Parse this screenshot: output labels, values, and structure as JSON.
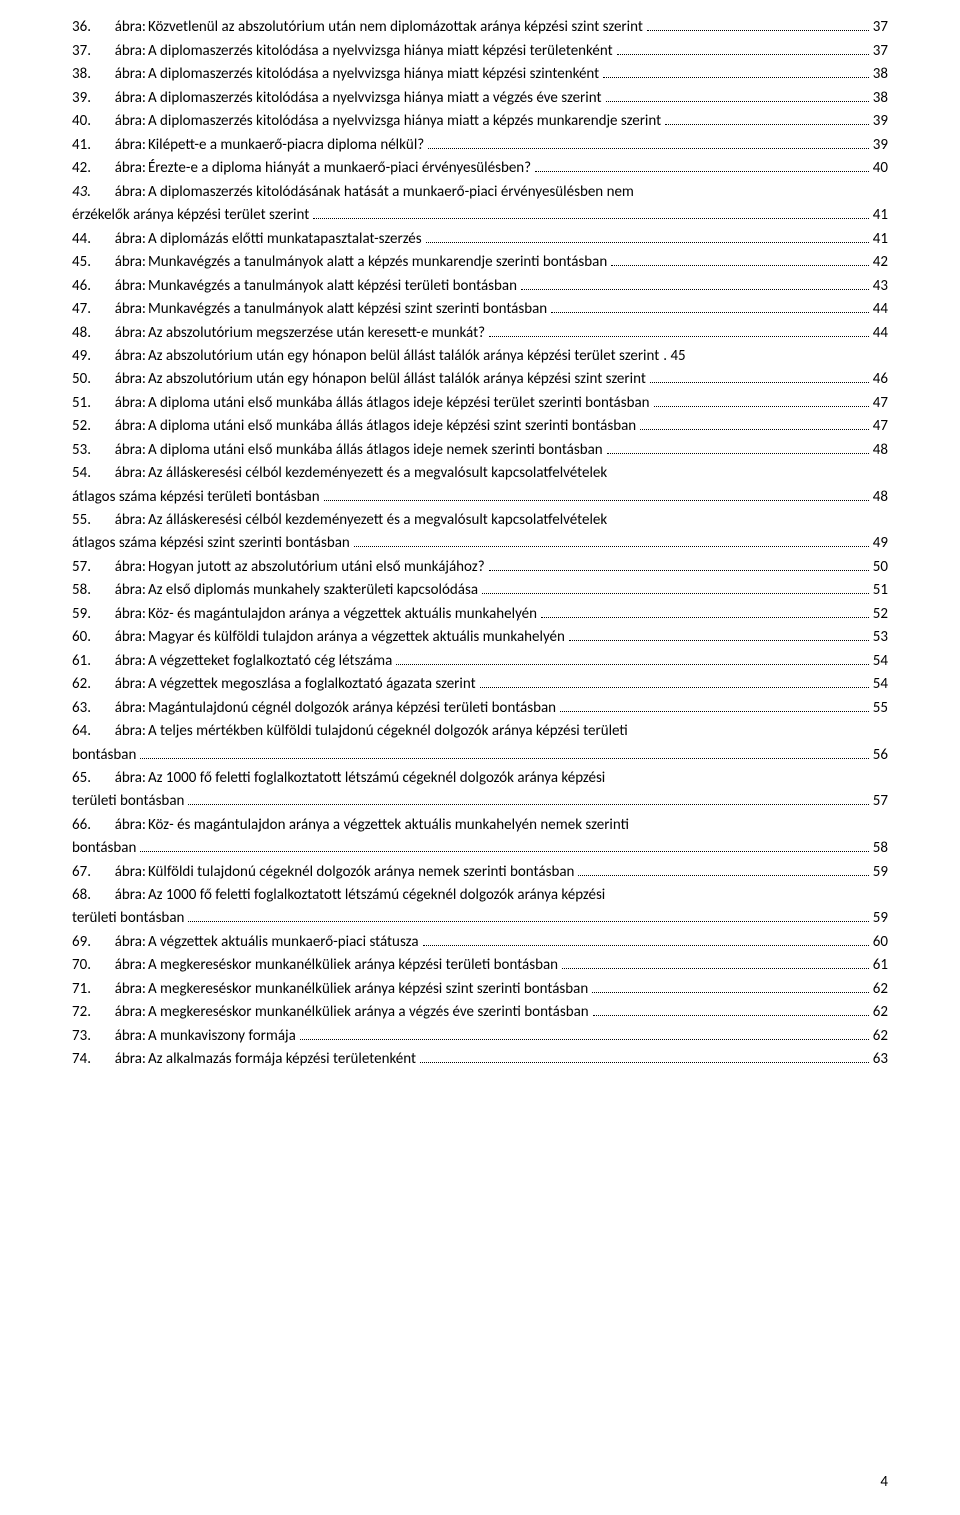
{
  "label_prefix": "ábra:",
  "page_number": "4",
  "entries": [
    {
      "n": "36.",
      "title": "Közvetlenül az abszolutórium után nem diplomázottak aránya képzési szint szerint",
      "page": "37",
      "wrap": false
    },
    {
      "n": "37.",
      "title": "A diplomaszerzés kitolódása a nyelvvizsga hiánya miatt képzési területenként",
      "page": "37",
      "wrap": false
    },
    {
      "n": "38.",
      "title": "A diplomaszerzés kitolódása a nyelvvizsga hiánya miatt képzési szintenként",
      "page": "38",
      "wrap": false
    },
    {
      "n": "39.",
      "title": "A diplomaszerzés kitolódása a nyelvvizsga hiánya miatt a végzés éve szerint",
      "page": "38",
      "wrap": false
    },
    {
      "n": "40.",
      "title": "A diplomaszerzés kitolódása a nyelvvizsga hiánya miatt a képzés munkarendje szerint",
      "page": "39",
      "wrap": false
    },
    {
      "n": "41.",
      "title": "Kilépett-e a munkaerő-piacra diploma nélkül?",
      "page": "39",
      "wrap": false
    },
    {
      "n": "42.",
      "title": "Érezte-e a diploma hiányát a munkaerő-piaci érvényesülésben?",
      "page": "40",
      "wrap": false
    },
    {
      "n": "43.",
      "title": "A diplomaszerzés kitolódásának hatását a munkaerő-piaci érvényesülésben nem érzékelők aránya képzési terület szerint",
      "page": "41",
      "wrap": true,
      "italic": true
    },
    {
      "n": "44.",
      "title": "A diplomázás előtti munkatapasztalat-szerzés",
      "page": "41",
      "wrap": false
    },
    {
      "n": "45.",
      "title": "Munkavégzés a tanulmányok alatt a képzés munkarendje szerinti bontásban",
      "page": "42",
      "wrap": false
    },
    {
      "n": "46.",
      "title": "Munkavégzés a tanulmányok alatt képzési területi bontásban",
      "page": "43",
      "wrap": false
    },
    {
      "n": "47.",
      "title": "Munkavégzés a tanulmányok alatt képzési szint szerinti bontásban",
      "page": "44",
      "wrap": false
    },
    {
      "n": "48.",
      "title": "Az abszolutórium megszerzése után keresett-e munkát?",
      "page": "44",
      "wrap": false
    },
    {
      "n": "49.",
      "title": "Az abszolutórium után egy hónapon belül állást találók aránya képzési terület szerint",
      "page": "45",
      "wrap": false,
      "tight": true
    },
    {
      "n": "50.",
      "title": "Az abszolutórium után egy hónapon belül állást találók aránya képzési szint szerint",
      "page": "46",
      "wrap": false
    },
    {
      "n": "51.",
      "title": "A diploma utáni első munkába állás átlagos ideje képzési terület szerinti bontásban",
      "page": "47",
      "wrap": false
    },
    {
      "n": "52.",
      "title": "A diploma utáni első munkába állás átlagos ideje képzési szint szerinti bontásban",
      "page": "47",
      "wrap": false
    },
    {
      "n": "53.",
      "title": "A diploma utáni első munkába állás átlagos ideje nemek szerinti bontásban",
      "page": "48",
      "wrap": false
    },
    {
      "n": "54.",
      "title": "Az álláskeresési célból kezdeményezett és a megvalósult kapcsolatfelvételek átlagos száma képzési területi bontásban",
      "page": "48",
      "wrap": true
    },
    {
      "n": "55.",
      "title": "Az álláskeresési célból kezdeményezett és a megvalósult kapcsolatfelvételek átlagos száma képzési szint szerinti bontásban",
      "page": "49",
      "wrap": true
    },
    {
      "n": "57.",
      "title": "Hogyan jutott az abszolutórium utáni első munkájához?",
      "page": "50",
      "wrap": false
    },
    {
      "n": "58.",
      "title": "Az első diplomás munkahely szakterületi kapcsolódása",
      "page": "51",
      "wrap": false
    },
    {
      "n": "59.",
      "title": "Köz- és magántulajdon aránya a végzettek aktuális munkahelyén",
      "page": "52",
      "wrap": false
    },
    {
      "n": "60.",
      "title": "Magyar és külföldi tulajdon aránya a végzettek aktuális munkahelyén",
      "page": "53",
      "wrap": false
    },
    {
      "n": "61.",
      "title": "A végzetteket foglalkoztató cég létszáma",
      "page": "54",
      "wrap": false
    },
    {
      "n": "62.",
      "title": "A végzettek megoszlása a foglalkoztató ágazata szerint",
      "page": "54",
      "wrap": false
    },
    {
      "n": "63.",
      "title": "Magántulajdonú cégnél dolgozók aránya képzési területi bontásban",
      "page": "55",
      "wrap": false
    },
    {
      "n": "64.",
      "title": "A teljes mértékben külföldi tulajdonú cégeknél dolgozók aránya képzési területi bontásban",
      "page": "56",
      "wrap": true
    },
    {
      "n": "65.",
      "title": "Az 1000 fő feletti foglalkoztatott létszámú cégeknél dolgozók aránya képzési területi bontásban",
      "page": "57",
      "wrap": true
    },
    {
      "n": "66.",
      "title": "Köz- és magántulajdon aránya a végzettek aktuális munkahelyén nemek szerinti bontásban",
      "page": "58",
      "wrap": true
    },
    {
      "n": "67.",
      "title": "Külföldi tulajdonú cégeknél dolgozók aránya nemek szerinti bontásban",
      "page": "59",
      "wrap": false
    },
    {
      "n": "68.",
      "title": "Az 1000 fő feletti foglalkoztatott létszámú cégeknél dolgozók aránya képzési területi bontásban",
      "page": "59",
      "wrap": true
    },
    {
      "n": "69.",
      "title": "A végzettek aktuális munkaerő-piaci státusza",
      "page": "60",
      "wrap": false
    },
    {
      "n": "70.",
      "title": "A megkereséskor munkanélküliek aránya képzési területi bontásban",
      "page": "61",
      "wrap": false
    },
    {
      "n": "71.",
      "title": "A megkereséskor munkanélküliek aránya képzési szint szerinti bontásban",
      "page": "62",
      "wrap": false
    },
    {
      "n": "72.",
      "title": "A megkereséskor munkanélküliek aránya a végzés éve szerinti bontásban",
      "page": "62",
      "wrap": false
    },
    {
      "n": "73.",
      "title": "A munkaviszony formája",
      "page": "62",
      "wrap": false
    },
    {
      "n": "74.",
      "title": "Az alkalmazás formája képzési területenként",
      "page": "63",
      "wrap": false
    }
  ]
}
